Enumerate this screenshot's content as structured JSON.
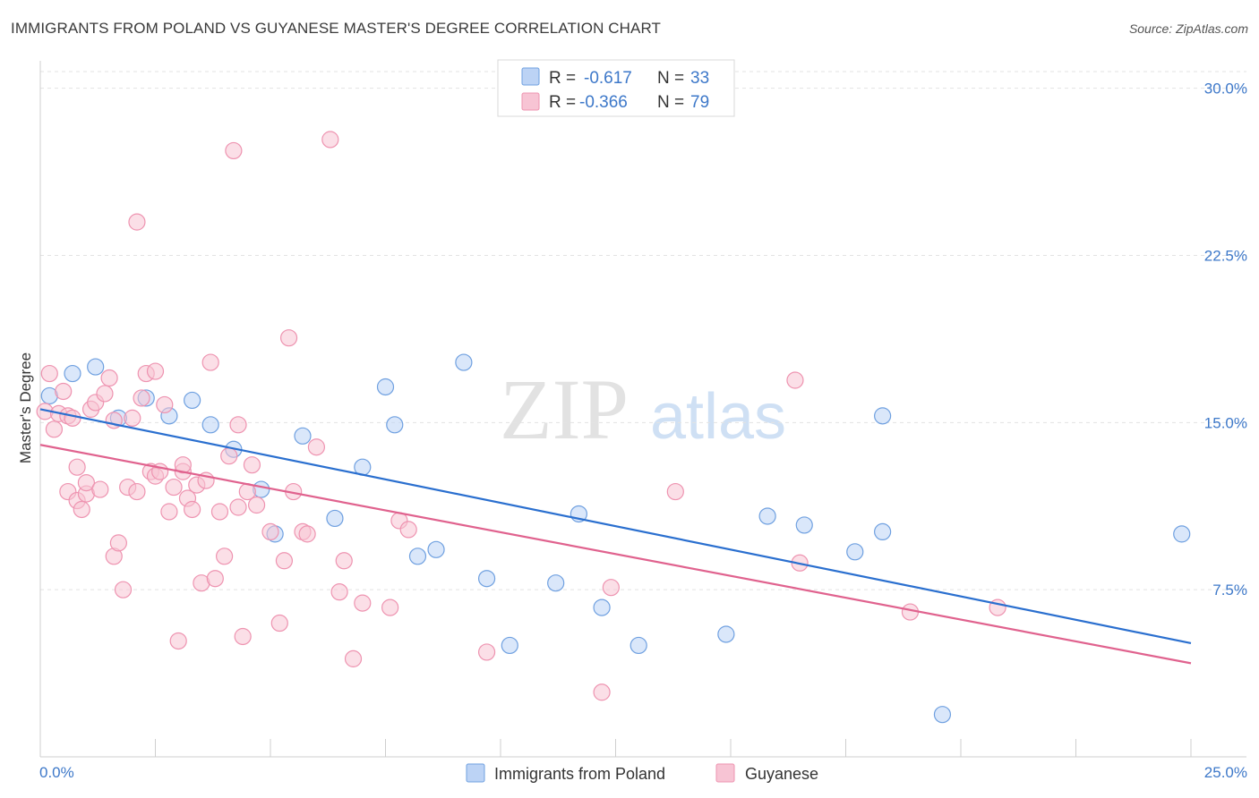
{
  "title": "IMMIGRANTS FROM POLAND VS GUYANESE MASTER'S DEGREE CORRELATION CHART",
  "source": "Source: ZipAtlas.com",
  "watermark": {
    "zip": "ZIP",
    "atlas": "atlas"
  },
  "chart_data": {
    "type": "scatter",
    "ylabel": "Master's Degree",
    "xlim": [
      0,
      25
    ],
    "ylim": [
      0,
      30.75
    ],
    "x_ticks_labeled": [
      "0.0%",
      "25.0%"
    ],
    "y_ticks": [
      {
        "value": 7.5,
        "label": "7.5%"
      },
      {
        "value": 15.0,
        "label": "15.0%"
      },
      {
        "value": 22.5,
        "label": "22.5%"
      },
      {
        "value": 30.0,
        "label": "30.0%"
      }
    ],
    "grid": "horizontal dashed",
    "legend_position": "top-center",
    "series": [
      {
        "name": "Immigrants from Poland",
        "color": "#6fa0e0",
        "fill": "#bcd3f5",
        "line_color": "#2a6fcf",
        "stats": {
          "r_label": "R = ",
          "r_value": "-0.617",
          "n_label": "N = ",
          "n_value": "33"
        },
        "trend": [
          [
            0,
            15.6
          ],
          [
            25,
            5.1
          ]
        ],
        "points": [
          [
            0.2,
            16.2
          ],
          [
            0.7,
            17.2
          ],
          [
            1.2,
            17.5
          ],
          [
            1.7,
            15.2
          ],
          [
            2.3,
            16.1
          ],
          [
            2.8,
            15.3
          ],
          [
            3.3,
            16.0
          ],
          [
            3.7,
            14.9
          ],
          [
            4.2,
            13.8
          ],
          [
            4.8,
            12.0
          ],
          [
            5.1,
            10.0
          ],
          [
            5.7,
            14.4
          ],
          [
            6.4,
            10.7
          ],
          [
            7.0,
            13.0
          ],
          [
            7.5,
            16.6
          ],
          [
            7.7,
            14.9
          ],
          [
            8.2,
            9.0
          ],
          [
            8.6,
            9.3
          ],
          [
            9.2,
            17.7
          ],
          [
            9.7,
            8.0
          ],
          [
            10.2,
            5.0
          ],
          [
            11.2,
            7.8
          ],
          [
            11.7,
            10.9
          ],
          [
            12.2,
            6.7
          ],
          [
            13.0,
            5.0
          ],
          [
            14.9,
            5.5
          ],
          [
            15.8,
            10.8
          ],
          [
            16.6,
            10.4
          ],
          [
            17.7,
            9.2
          ],
          [
            18.3,
            10.1
          ],
          [
            18.3,
            15.3
          ],
          [
            19.6,
            1.9
          ],
          [
            24.8,
            10.0
          ]
        ]
      },
      {
        "name": "Guyanese",
        "color": "#ee93b0",
        "fill": "#f7c4d4",
        "line_color": "#e0628e",
        "stats": {
          "r_label": "R = ",
          "r_value": "-0.366",
          "n_label": "N = ",
          "n_value": "79"
        },
        "trend": [
          [
            0,
            14.0
          ],
          [
            25,
            4.2
          ]
        ],
        "points": [
          [
            0.1,
            15.5
          ],
          [
            0.2,
            17.2
          ],
          [
            0.3,
            14.7
          ],
          [
            0.4,
            15.4
          ],
          [
            0.5,
            16.4
          ],
          [
            0.6,
            15.3
          ],
          [
            0.7,
            15.2
          ],
          [
            0.6,
            11.9
          ],
          [
            0.8,
            13.0
          ],
          [
            0.8,
            11.5
          ],
          [
            0.9,
            11.1
          ],
          [
            1.0,
            11.8
          ],
          [
            1.0,
            12.3
          ],
          [
            1.1,
            15.6
          ],
          [
            1.2,
            15.9
          ],
          [
            1.3,
            12.0
          ],
          [
            1.4,
            16.3
          ],
          [
            1.5,
            17.0
          ],
          [
            1.6,
            15.1
          ],
          [
            1.6,
            9.0
          ],
          [
            1.7,
            9.6
          ],
          [
            1.8,
            7.5
          ],
          [
            1.9,
            12.1
          ],
          [
            2.0,
            15.2
          ],
          [
            2.1,
            24.0
          ],
          [
            2.1,
            11.9
          ],
          [
            2.2,
            16.1
          ],
          [
            2.3,
            17.2
          ],
          [
            2.4,
            12.8
          ],
          [
            2.5,
            17.3
          ],
          [
            2.5,
            12.6
          ],
          [
            2.6,
            12.8
          ],
          [
            2.7,
            15.8
          ],
          [
            2.8,
            11.0
          ],
          [
            2.9,
            12.1
          ],
          [
            3.0,
            5.2
          ],
          [
            3.1,
            12.8
          ],
          [
            3.1,
            13.1
          ],
          [
            3.2,
            11.6
          ],
          [
            3.3,
            11.1
          ],
          [
            3.4,
            12.2
          ],
          [
            3.5,
            7.8
          ],
          [
            3.6,
            12.4
          ],
          [
            3.7,
            17.7
          ],
          [
            3.8,
            8.0
          ],
          [
            3.9,
            11.0
          ],
          [
            4.0,
            9.0
          ],
          [
            4.1,
            13.5
          ],
          [
            4.2,
            27.2
          ],
          [
            4.3,
            11.2
          ],
          [
            4.3,
            14.9
          ],
          [
            4.4,
            5.4
          ],
          [
            4.5,
            11.9
          ],
          [
            4.6,
            13.1
          ],
          [
            4.7,
            11.3
          ],
          [
            5.0,
            10.1
          ],
          [
            5.2,
            6.0
          ],
          [
            5.3,
            8.8
          ],
          [
            5.4,
            18.8
          ],
          [
            5.5,
            11.9
          ],
          [
            5.7,
            10.1
          ],
          [
            5.8,
            10.0
          ],
          [
            6.0,
            13.9
          ],
          [
            6.3,
            27.7
          ],
          [
            6.5,
            7.4
          ],
          [
            6.6,
            8.8
          ],
          [
            6.8,
            4.4
          ],
          [
            7.0,
            6.9
          ],
          [
            7.6,
            6.7
          ],
          [
            7.8,
            10.6
          ],
          [
            8.0,
            10.2
          ],
          [
            9.7,
            4.7
          ],
          [
            12.2,
            2.9
          ],
          [
            12.4,
            7.6
          ],
          [
            13.8,
            11.9
          ],
          [
            16.4,
            16.9
          ],
          [
            16.5,
            8.7
          ],
          [
            18.9,
            6.5
          ],
          [
            20.8,
            6.7
          ]
        ]
      }
    ]
  }
}
